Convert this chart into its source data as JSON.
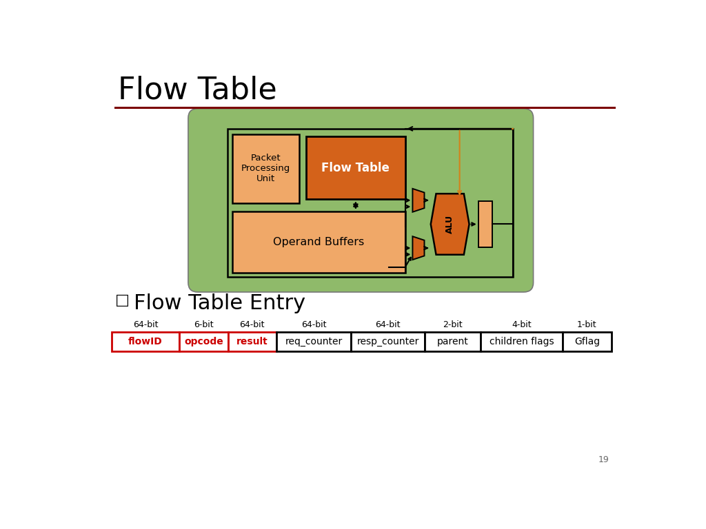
{
  "title": "Flow Table",
  "title_fontsize": 32,
  "separator_color": "#7B0000",
  "bg_color": "#ffffff",
  "page_number": "19",
  "diagram": {
    "green_bg": "#8FBA6A",
    "ppu_color": "#F0A868",
    "flow_table_color": "#D4621A",
    "operand_color": "#F0A868",
    "alu_color": "#D4621A",
    "mux_color": "#D4621A",
    "reg_color": "#F0A868",
    "orange_line": "#D4821A"
  },
  "table_section": {
    "bit_labels": [
      "64-bit",
      "6-bit",
      "64-bit",
      "64-bit",
      "64-bit",
      "2-bit",
      "4-bit",
      "1-bit"
    ],
    "cell_labels": [
      "flowID",
      "opcode",
      "result",
      "req_counter",
      "resp_counter",
      "parent",
      "children flags",
      "Gflag"
    ],
    "cell_colors_text": [
      "#cc0000",
      "#cc0000",
      "#cc0000",
      "#000000",
      "#000000",
      "#000000",
      "#000000",
      "#000000"
    ],
    "cell_border_colors": [
      "#cc0000",
      "#cc0000",
      "#cc0000",
      "#000000",
      "#000000",
      "#000000",
      "#000000",
      "#000000"
    ],
    "col_widths": [
      1.0,
      0.72,
      0.72,
      1.1,
      1.1,
      0.82,
      1.22,
      0.72
    ]
  }
}
